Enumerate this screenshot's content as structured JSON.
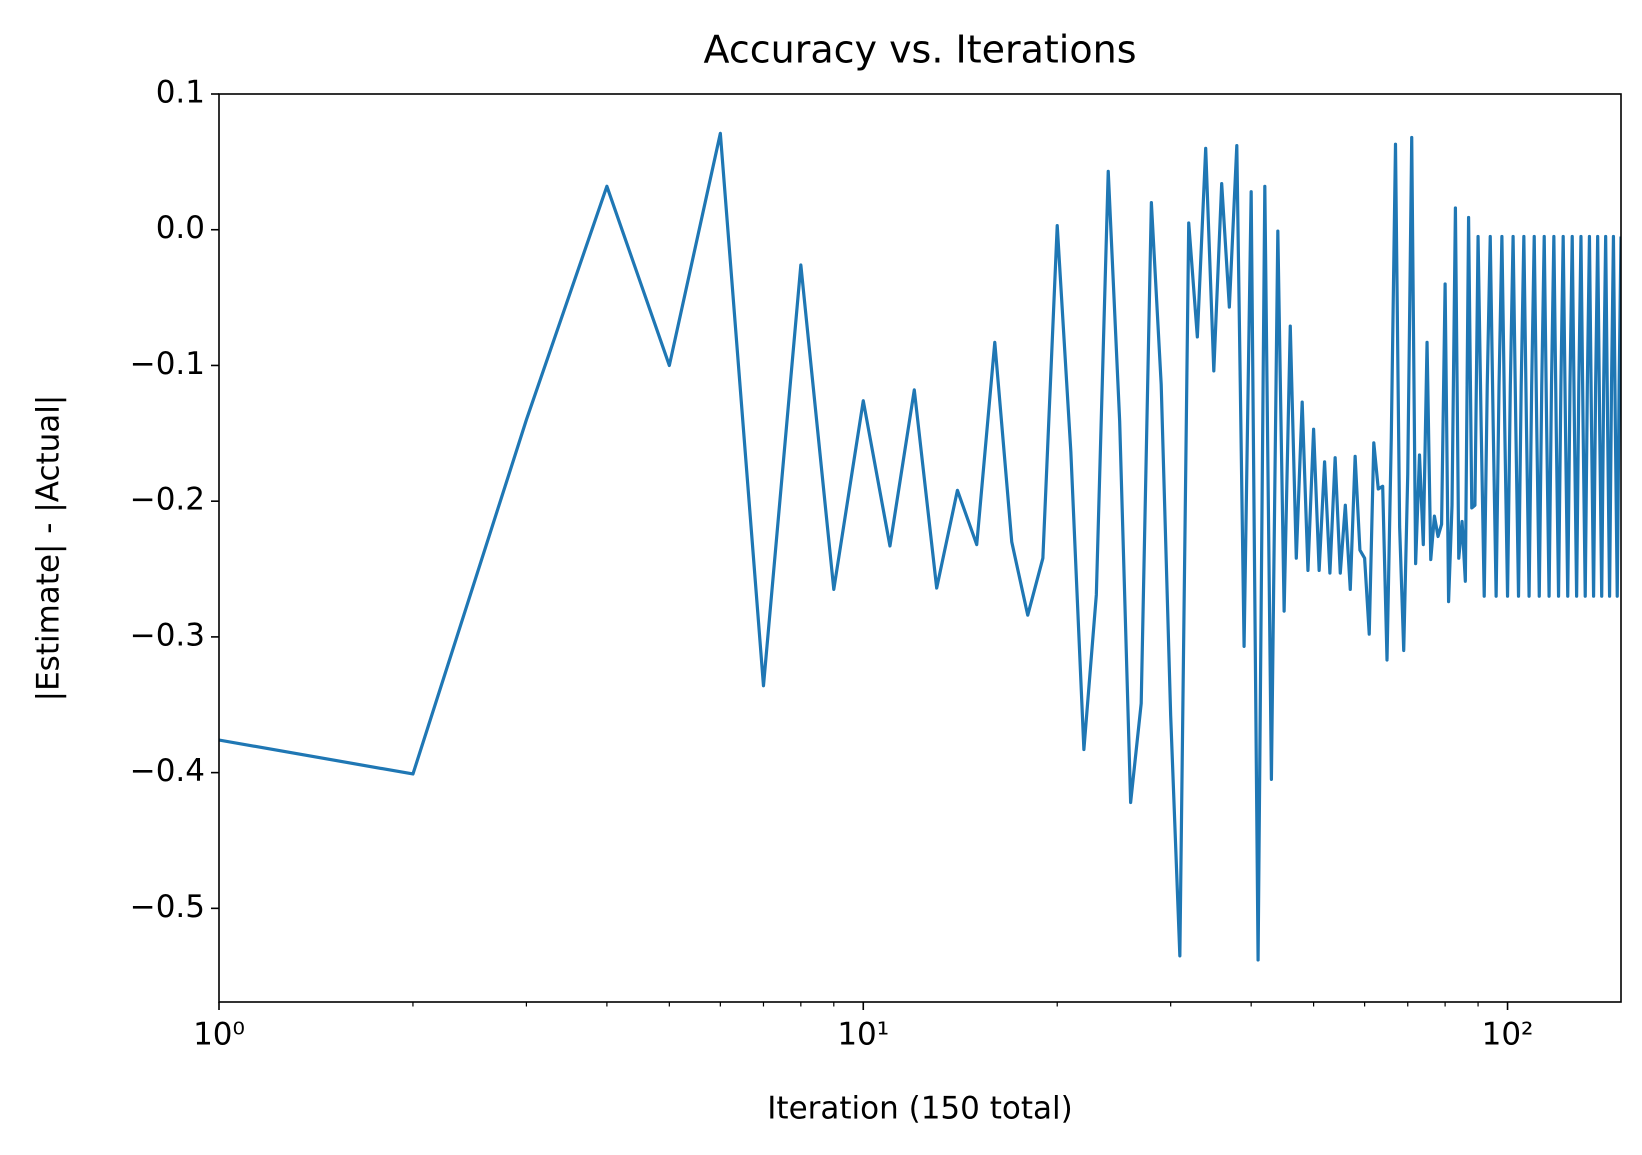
{
  "chart_data": {
    "type": "line",
    "title": "Accuracy vs. Iterations",
    "xlabel": "Iteration (150 total)",
    "ylabel": "|Estimate| - |Actual|",
    "xscale": "log",
    "color": "#1f77b4",
    "xlim": [
      1,
      150
    ],
    "ylim": [
      -0.569,
      0.1
    ],
    "xticks": [
      {
        "value": 1,
        "label": "10⁰"
      },
      {
        "value": 10,
        "label": "10¹"
      },
      {
        "value": 100,
        "label": "10²"
      }
    ],
    "xminorticks": [
      2,
      3,
      4,
      5,
      6,
      7,
      8,
      9,
      20,
      30,
      40,
      50,
      60,
      70,
      80,
      90
    ],
    "yticks": [
      {
        "value": -0.5,
        "label": "−0.5"
      },
      {
        "value": -0.4,
        "label": "−0.4"
      },
      {
        "value": -0.3,
        "label": "−0.3"
      },
      {
        "value": -0.2,
        "label": "−0.2"
      },
      {
        "value": -0.1,
        "label": "−0.1"
      },
      {
        "value": 0.0,
        "label": "0.0"
      },
      0.1
    ],
    "x": [
      1,
      2,
      3,
      4,
      5,
      6,
      7,
      8,
      9,
      10,
      11,
      12,
      13,
      14,
      15,
      16,
      17,
      18,
      19,
      20,
      21,
      22,
      23,
      24,
      25,
      26,
      27,
      28,
      29,
      30,
      31,
      32,
      33,
      34,
      35,
      36,
      37,
      38,
      39,
      40,
      41,
      42,
      43,
      44,
      45,
      46,
      47,
      48,
      49,
      50,
      51,
      52,
      53,
      54,
      55,
      56,
      57,
      58,
      59,
      60,
      61,
      62,
      63,
      64,
      65,
      66,
      67,
      68,
      69,
      70,
      71,
      72,
      73,
      74,
      75,
      76,
      77,
      78,
      79,
      80,
      81,
      82,
      83,
      84,
      85,
      86,
      87,
      88,
      89,
      90,
      91,
      92,
      93,
      94,
      95,
      96,
      97,
      98,
      99,
      100,
      101,
      102,
      103,
      104,
      105,
      106,
      107,
      108,
      109,
      110,
      111,
      112,
      113,
      114,
      115,
      116,
      117,
      118,
      119,
      120,
      121,
      122,
      123,
      124,
      125,
      126,
      127,
      128,
      129,
      130,
      131,
      132,
      133,
      134,
      135,
      136,
      137,
      138,
      139,
      140,
      141,
      142,
      143,
      144,
      145,
      146,
      147,
      148,
      149,
      150
    ],
    "values": [
      -0.376,
      -0.401,
      -0.14,
      0.032,
      -0.1,
      0.071,
      -0.336,
      -0.026,
      -0.265,
      -0.126,
      -0.233,
      -0.118,
      -0.264,
      -0.192,
      -0.232,
      -0.083,
      -0.23,
      -0.284,
      -0.242,
      0.003,
      -0.164,
      -0.383,
      -0.269,
      0.043,
      -0.141,
      -0.422,
      -0.349,
      0.02,
      -0.114,
      -0.358,
      -0.535,
      0.005,
      -0.079,
      0.06,
      -0.104,
      0.034,
      -0.057,
      0.062,
      -0.307,
      0.028,
      -0.538,
      0.032,
      -0.405,
      -0.001,
      -0.281,
      -0.071,
      -0.242,
      -0.127,
      -0.251,
      -0.147,
      -0.251,
      -0.171,
      -0.253,
      -0.168,
      -0.253,
      -0.203,
      -0.265,
      -0.167,
      -0.236,
      -0.242,
      -0.298,
      -0.157,
      -0.191,
      -0.189,
      -0.317,
      -0.153,
      0.063,
      -0.219,
      -0.31,
      -0.18,
      0.068,
      -0.246,
      -0.166,
      -0.232,
      -0.083,
      -0.243,
      -0.211,
      -0.226,
      -0.217,
      -0.04,
      -0.274,
      -0.203,
      0.016,
      -0.242,
      -0.215,
      -0.259,
      0.009,
      -0.205,
      -0.203,
      -0.005,
      -0.145,
      -0.27,
      -0.115,
      -0.005,
      -0.145,
      -0.27,
      -0.115,
      -0.005,
      -0.145,
      -0.27,
      -0.115,
      -0.005,
      -0.145,
      -0.27,
      -0.115,
      -0.005,
      -0.145,
      -0.27,
      -0.115,
      -0.005,
      -0.145,
      -0.27,
      -0.115,
      -0.005,
      -0.145,
      -0.27,
      -0.115,
      -0.005,
      -0.145,
      -0.27,
      -0.115,
      -0.005,
      -0.145,
      -0.27,
      -0.115,
      -0.005,
      -0.145,
      -0.27,
      -0.115,
      -0.005,
      -0.145,
      -0.27,
      -0.115,
      -0.005,
      -0.145,
      -0.27,
      -0.115,
      -0.005,
      -0.145,
      -0.27,
      -0.115,
      -0.005,
      -0.145,
      -0.27,
      -0.115,
      -0.005,
      -0.145,
      -0.27,
      -0.115,
      -0.005
    ]
  }
}
